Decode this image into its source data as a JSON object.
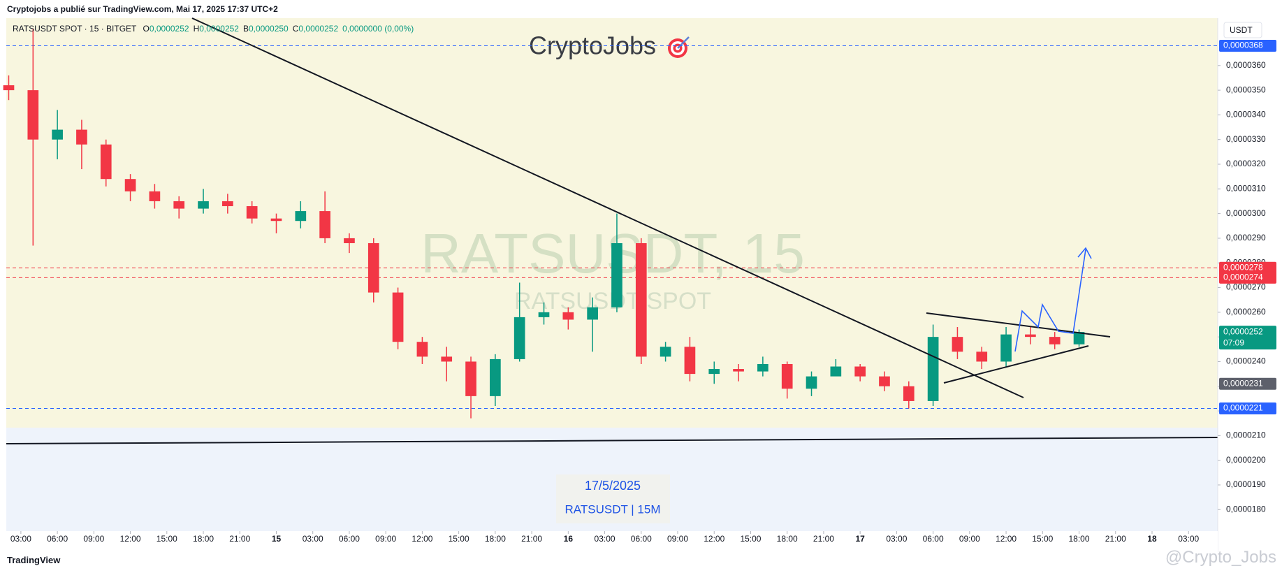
{
  "chart_data": {
    "type": "candlestick",
    "header": "Cryptojobs a publié sur TradingView.com, Mai 17, 2025 17:37 UTC+2",
    "legend": {
      "symbol": "RATSUSDT SPOT · 15 · BITGET",
      "fields": [
        {
          "key": "O",
          "value": "0,0000252"
        },
        {
          "key": "H",
          "value": "0,0000252"
        },
        {
          "key": "B",
          "value": "0,0000250"
        },
        {
          "key": "C",
          "value": "0,0000252"
        }
      ],
      "change": "0,0000000 (0,00%)"
    },
    "brand": "CryptoJobs",
    "watermark": {
      "title": "RATSUSDT, 15",
      "subtitle": "RATSUSDT SPOT"
    },
    "annotation": {
      "date": "17/5/2025",
      "symbol": "RATSUSDT | 15M"
    },
    "footer": {
      "logo": "TradingView",
      "handle": "@Crypto_Jobs"
    },
    "currency": "USDT",
    "colors": {
      "up": "#089981",
      "down": "#f23645"
    },
    "grid": false,
    "x": [
      2,
      4,
      6,
      8,
      10,
      12,
      14,
      16,
      18,
      20,
      22,
      24,
      26,
      28,
      30,
      32,
      34,
      36,
      38,
      40,
      42,
      44,
      46,
      48,
      50,
      52,
      54,
      56,
      58,
      60,
      62,
      64,
      66,
      68,
      70,
      72,
      74,
      76,
      78,
      80,
      82,
      84,
      86,
      88,
      90
    ],
    "open": [
      3.52e-05,
      3.5e-05,
      3.3e-05,
      3.34e-05,
      3.28e-05,
      3.14e-05,
      3.09e-05,
      3.05e-05,
      3.02e-05,
      3.05e-05,
      3.03e-05,
      2.98e-05,
      2.97e-05,
      3.01e-05,
      2.9e-05,
      2.88e-05,
      2.68e-05,
      2.48e-05,
      2.42e-05,
      2.4e-05,
      2.26e-05,
      2.41e-05,
      2.58e-05,
      2.6e-05,
      2.57e-05,
      2.62e-05,
      2.88e-05,
      2.42e-05,
      2.46e-05,
      2.35e-05,
      2.37e-05,
      2.36e-05,
      2.39e-05,
      2.29e-05,
      2.34e-05,
      2.38e-05,
      2.34e-05,
      2.3e-05,
      2.24e-05,
      2.5e-05,
      2.44e-05,
      2.4e-05,
      2.51e-05,
      2.5e-05,
      2.47e-05
    ],
    "high": [
      3.56e-05,
      3.75e-05,
      3.42e-05,
      3.38e-05,
      3.3e-05,
      3.16e-05,
      3.12e-05,
      3.07e-05,
      3.1e-05,
      3.08e-05,
      3.05e-05,
      3e-05,
      3.05e-05,
      3.09e-05,
      2.92e-05,
      2.9e-05,
      2.7e-05,
      2.5e-05,
      2.46e-05,
      2.42e-05,
      2.43e-05,
      2.72e-05,
      2.64e-05,
      2.62e-05,
      2.66e-05,
      3e-05,
      2.9e-05,
      2.48e-05,
      2.5e-05,
      2.4e-05,
      2.39e-05,
      2.42e-05,
      2.4e-05,
      2.36e-05,
      2.41e-05,
      2.39e-05,
      2.36e-05,
      2.32e-05,
      2.55e-05,
      2.54e-05,
      2.46e-05,
      2.54e-05,
      2.54e-05,
      2.52e-05,
      2.53e-05
    ],
    "low": [
      3.46e-05,
      2.87e-05,
      3.22e-05,
      3.18e-05,
      3.11e-05,
      3.05e-05,
      3.02e-05,
      2.98e-05,
      3e-05,
      3e-05,
      2.96e-05,
      2.92e-05,
      2.94e-05,
      2.88e-05,
      2.84e-05,
      2.64e-05,
      2.45e-05,
      2.39e-05,
      2.32e-05,
      2.17e-05,
      2.22e-05,
      2.4e-05,
      2.55e-05,
      2.53e-05,
      2.44e-05,
      2.6e-05,
      2.39e-05,
      2.4e-05,
      2.32e-05,
      2.31e-05,
      2.32e-05,
      2.34e-05,
      2.25e-05,
      2.26e-05,
      2.35e-05,
      2.32e-05,
      2.28e-05,
      2.21e-05,
      2.22e-05,
      2.41e-05,
      2.37e-05,
      2.38e-05,
      2.47e-05,
      2.45e-05,
      2.46e-05
    ],
    "close": [
      3.5e-05,
      3.3e-05,
      3.34e-05,
      3.28e-05,
      3.14e-05,
      3.09e-05,
      3.05e-05,
      3.02e-05,
      3.05e-05,
      3.03e-05,
      2.98e-05,
      2.97e-05,
      3.01e-05,
      2.9e-05,
      2.88e-05,
      2.68e-05,
      2.48e-05,
      2.42e-05,
      2.4e-05,
      2.26e-05,
      2.41e-05,
      2.58e-05,
      2.6e-05,
      2.57e-05,
      2.62e-05,
      2.88e-05,
      2.42e-05,
      2.46e-05,
      2.35e-05,
      2.37e-05,
      2.36e-05,
      2.39e-05,
      2.29e-05,
      2.34e-05,
      2.38e-05,
      2.34e-05,
      2.3e-05,
      2.24e-05,
      2.5e-05,
      2.44e-05,
      2.4e-05,
      2.51e-05,
      2.5e-05,
      2.47e-05,
      2.52e-05
    ],
    "xlim": [
      1.8,
      101.4
    ],
    "xticks": [
      {
        "value": 3,
        "label": "03:00"
      },
      {
        "value": 6,
        "label": "06:00"
      },
      {
        "value": 9,
        "label": "09:00"
      },
      {
        "value": 12,
        "label": "12:00"
      },
      {
        "value": 15,
        "label": "15:00"
      },
      {
        "value": 18,
        "label": "18:00"
      },
      {
        "value": 21,
        "label": "21:00"
      },
      {
        "value": 24,
        "label": "15"
      },
      {
        "value": 27,
        "label": "03:00"
      },
      {
        "value": 30,
        "label": "06:00"
      },
      {
        "value": 33,
        "label": "09:00"
      },
      {
        "value": 36,
        "label": "12:00"
      },
      {
        "value": 39,
        "label": "15:00"
      },
      {
        "value": 42,
        "label": "18:00"
      },
      {
        "value": 45,
        "label": "21:00"
      },
      {
        "value": 48,
        "label": "16"
      },
      {
        "value": 51,
        "label": "03:00"
      },
      {
        "value": 54,
        "label": "06:00"
      },
      {
        "value": 57,
        "label": "09:00"
      },
      {
        "value": 60,
        "label": "12:00"
      },
      {
        "value": 63,
        "label": "15:00"
      },
      {
        "value": 66,
        "label": "18:00"
      },
      {
        "value": 69,
        "label": "21:00"
      },
      {
        "value": 72,
        "label": "17"
      },
      {
        "value": 75,
        "label": "03:00"
      },
      {
        "value": 78,
        "label": "06:00"
      },
      {
        "value": 81,
        "label": "09:00"
      },
      {
        "value": 84,
        "label": "12:00"
      },
      {
        "value": 87,
        "label": "15:00"
      },
      {
        "value": 90,
        "label": "18:00"
      },
      {
        "value": 93,
        "label": "21:00"
      },
      {
        "value": 96,
        "label": "18"
      },
      {
        "value": 99,
        "label": "03:00"
      }
    ],
    "ylim": [
      1.713e-05,
      3.792e-05
    ],
    "yticks": [
      {
        "value": 1.8e-05,
        "label": "0,0000180"
      },
      {
        "value": 1.9e-05,
        "label": "0,0000190"
      },
      {
        "value": 2e-05,
        "label": "0,0000200"
      },
      {
        "value": 2.1e-05,
        "label": "0,0000210"
      },
      {
        "value": 2.2e-05,
        "label": "0,0000220"
      },
      {
        "value": 2.3e-05,
        "label": "0,0000230"
      },
      {
        "value": 2.4e-05,
        "label": "0,0000240"
      },
      {
        "value": 2.5e-05,
        "label": "0,0000250"
      },
      {
        "value": 2.6e-05,
        "label": "0,0000260"
      },
      {
        "value": 2.7e-05,
        "label": "0,0000270"
      },
      {
        "value": 2.8e-05,
        "label": "0,0000280"
      },
      {
        "value": 2.9e-05,
        "label": "0,0000290"
      },
      {
        "value": 3e-05,
        "label": "0,0000300"
      },
      {
        "value": 3.1e-05,
        "label": "0,0000310"
      },
      {
        "value": 3.2e-05,
        "label": "0,0000320"
      },
      {
        "value": 3.3e-05,
        "label": "0,0000330"
      },
      {
        "value": 3.4e-05,
        "label": "0,0000340"
      },
      {
        "value": 3.5e-05,
        "label": "0,0000350"
      },
      {
        "value": 3.6e-05,
        "label": "0,0000360"
      }
    ],
    "price_labels": [
      {
        "value": 3.68e-05,
        "label": "0,0000368",
        "color": "#2962ff",
        "line": "dashed"
      },
      {
        "value": 2.78e-05,
        "label": "0,0000278",
        "color": "#f23645",
        "line": "dashed"
      },
      {
        "value": 2.74e-05,
        "label": "0,0000274",
        "color": "#f23645",
        "line": "dashed"
      },
      {
        "value": 2.52e-05,
        "label": "0,0000252",
        "sub": "07:09",
        "color": "#089981",
        "line": "none"
      },
      {
        "value": 2.31e-05,
        "label": "0,0000231",
        "color": "#5d606b",
        "line": "none"
      },
      {
        "value": 2.21e-05,
        "label": "0,0000221",
        "color": "#2962ff",
        "line": "dashed"
      }
    ]
  }
}
